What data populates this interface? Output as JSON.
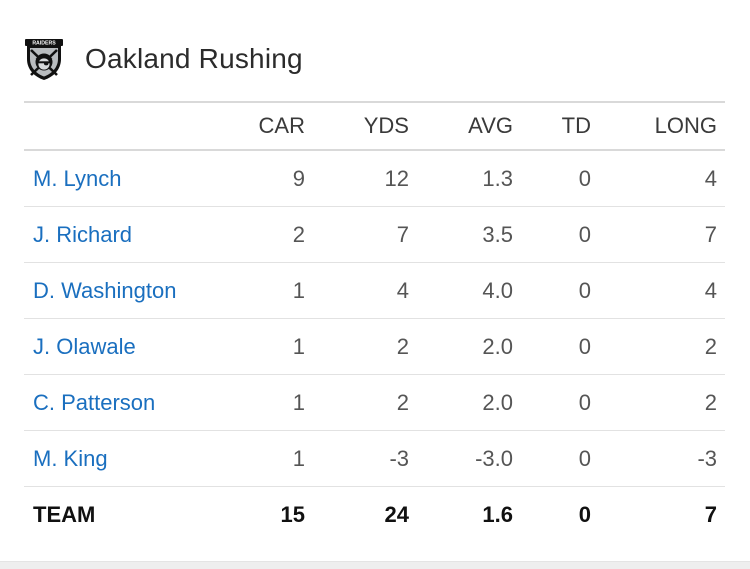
{
  "header": {
    "title": "Oakland Rushing",
    "logo_icon": "raiders-logo-icon",
    "logo_text": "RAIDERS"
  },
  "table": {
    "columns": [
      "CAR",
      "YDS",
      "AVG",
      "TD",
      "LONG"
    ],
    "rows": [
      {
        "name": "M. Lynch",
        "car": "9",
        "yds": "12",
        "avg": "1.3",
        "td": "0",
        "long": "4"
      },
      {
        "name": "J. Richard",
        "car": "2",
        "yds": "7",
        "avg": "3.5",
        "td": "0",
        "long": "7"
      },
      {
        "name": "D. Washington",
        "car": "1",
        "yds": "4",
        "avg": "4.0",
        "td": "0",
        "long": "4"
      },
      {
        "name": "J. Olawale",
        "car": "1",
        "yds": "2",
        "avg": "2.0",
        "td": "0",
        "long": "2"
      },
      {
        "name": "C. Patterson",
        "car": "1",
        "yds": "2",
        "avg": "2.0",
        "td": "0",
        "long": "2"
      },
      {
        "name": "M. King",
        "car": "1",
        "yds": "-3",
        "avg": "-3.0",
        "td": "0",
        "long": "-3"
      }
    ],
    "total": {
      "label": "TEAM",
      "car": "15",
      "yds": "24",
      "avg": "1.6",
      "td": "0",
      "long": "7"
    }
  },
  "colors": {
    "player_link": "#1a6fbf",
    "text": "#555555",
    "divider": "#d9d9d9"
  }
}
